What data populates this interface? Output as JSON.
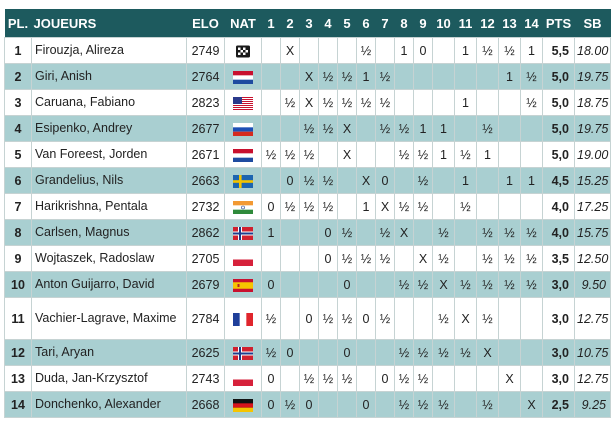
{
  "headers": {
    "pl": "PL.",
    "player": "JOUEURS",
    "elo": "ELO",
    "nat": "NAT",
    "rounds": [
      "1",
      "2",
      "3",
      "4",
      "5",
      "6",
      "7",
      "8",
      "9",
      "10",
      "11",
      "12",
      "13",
      "14"
    ],
    "pts": "PTS",
    "sb": "SB"
  },
  "rows": [
    {
      "pl": "1",
      "name": "Firouzja, Alireza",
      "elo": "2749",
      "nat": "FIDE",
      "r": [
        "",
        "X",
        "",
        "",
        "",
        "½",
        "",
        "1",
        "0",
        "",
        "1",
        "½",
        "½",
        "1"
      ],
      "pts": "5,5",
      "sb": "18.00"
    },
    {
      "pl": "2",
      "name": "Giri, Anish",
      "elo": "2764",
      "nat": "NED",
      "r": [
        "",
        "",
        "X",
        "½",
        "½",
        "1",
        "½",
        "",
        "",
        "",
        "",
        "",
        "1",
        "½"
      ],
      "pts": "5,0",
      "sb": "19.75"
    },
    {
      "pl": "3",
      "name": "Caruana, Fabiano",
      "elo": "2823",
      "nat": "USA",
      "r": [
        "",
        "½",
        "X",
        "½",
        "½",
        "½",
        "½",
        "",
        "",
        "",
        "1",
        "",
        "",
        "½"
      ],
      "pts": "5,0",
      "sb": "18.75"
    },
    {
      "pl": "4",
      "name": "Esipenko, Andrey",
      "elo": "2677",
      "nat": "RUS",
      "r": [
        "",
        "",
        "½",
        "½",
        "X",
        "",
        "½",
        "½",
        "1",
        "1",
        "",
        "½",
        "",
        ""
      ],
      "pts": "5,0",
      "sb": "19.75"
    },
    {
      "pl": "5",
      "name": "Van Foreest, Jorden",
      "elo": "2671",
      "nat": "NED",
      "r": [
        "½",
        "½",
        "½",
        "",
        "X",
        "",
        "",
        "½",
        "½",
        "1",
        "½",
        "1",
        "",
        ""
      ],
      "pts": "5,0",
      "sb": "19.00"
    },
    {
      "pl": "6",
      "name": "Grandelius, Nils",
      "elo": "2663",
      "nat": "SWE",
      "r": [
        "",
        "0",
        "½",
        "½",
        "",
        "X",
        "0",
        "",
        "½",
        "",
        "1",
        "",
        "1",
        "1"
      ],
      "pts": "4,5",
      "sb": "15.25"
    },
    {
      "pl": "7",
      "name": "Harikrishna, Pentala",
      "elo": "2732",
      "nat": "IND",
      "r": [
        "0",
        "½",
        "½",
        "½",
        "",
        "1",
        "X",
        "½",
        "½",
        "",
        "½",
        "",
        "",
        ""
      ],
      "pts": "4,0",
      "sb": "17.25"
    },
    {
      "pl": "8",
      "name": "Carlsen, Magnus",
      "elo": "2862",
      "nat": "NOR",
      "r": [
        "1",
        "",
        "",
        "0",
        "½",
        "",
        "½",
        "X",
        "",
        "½",
        "",
        "½",
        "½",
        "½"
      ],
      "pts": "4,0",
      "sb": "15.75"
    },
    {
      "pl": "9",
      "name": "Wojtaszek, Radoslaw",
      "elo": "2705",
      "nat": "POL",
      "r": [
        "",
        "",
        "",
        "0",
        "½",
        "½",
        "½",
        "",
        "X",
        "½",
        "",
        "½",
        "½",
        "½"
      ],
      "pts": "3,5",
      "sb": "12.50"
    },
    {
      "pl": "10",
      "name": "Anton Guijarro, David",
      "elo": "2679",
      "nat": "ESP",
      "r": [
        "0",
        "",
        "",
        "",
        "0",
        "",
        "",
        "½",
        "½",
        "X",
        "½",
        "½",
        "½",
        "½"
      ],
      "pts": "3,0",
      "sb": "9.50"
    },
    {
      "pl": "11",
      "name": "Vachier-Lagrave, Maxime",
      "elo": "2784",
      "nat": "FRA",
      "r": [
        "½",
        "",
        "0",
        "½",
        "½",
        "0",
        "½",
        "",
        "",
        "½",
        "X",
        "½",
        "",
        ""
      ],
      "pts": "3,0",
      "sb": "12.75"
    },
    {
      "pl": "12",
      "name": "Tari, Aryan",
      "elo": "2625",
      "nat": "NOR",
      "r": [
        "½",
        "0",
        "",
        "",
        "0",
        "",
        "",
        "½",
        "½",
        "½",
        "½",
        "X",
        "",
        ""
      ],
      "pts": "3,0",
      "sb": "10.75"
    },
    {
      "pl": "13",
      "name": "Duda, Jan-Krzysztof",
      "elo": "2743",
      "nat": "POL",
      "r": [
        "0",
        "",
        "½",
        "½",
        "½",
        "",
        "0",
        "½",
        "½",
        "",
        "",
        "",
        "X",
        ""
      ],
      "pts": "3,0",
      "sb": "12.75"
    },
    {
      "pl": "14",
      "name": "Donchenko, Alexander",
      "elo": "2668",
      "nat": "GER",
      "r": [
        "0",
        "½",
        "0",
        "",
        "",
        "0",
        "",
        "½",
        "½",
        "½",
        "",
        "½",
        "",
        "X"
      ],
      "pts": "2,5",
      "sb": "9.25"
    }
  ],
  "flags": {
    "FIDE": "fide-icon",
    "NED": "netherlands-flag-icon",
    "USA": "usa-flag-icon",
    "RUS": "russia-flag-icon",
    "SWE": "sweden-flag-icon",
    "IND": "india-flag-icon",
    "NOR": "norway-flag-icon",
    "POL": "poland-flag-icon",
    "ESP": "spain-flag-icon",
    "FRA": "france-flag-icon",
    "GER": "germany-flag-icon"
  },
  "colors": {
    "header_bg": "#1d5a5e",
    "stripe": "#a9cfd1"
  }
}
